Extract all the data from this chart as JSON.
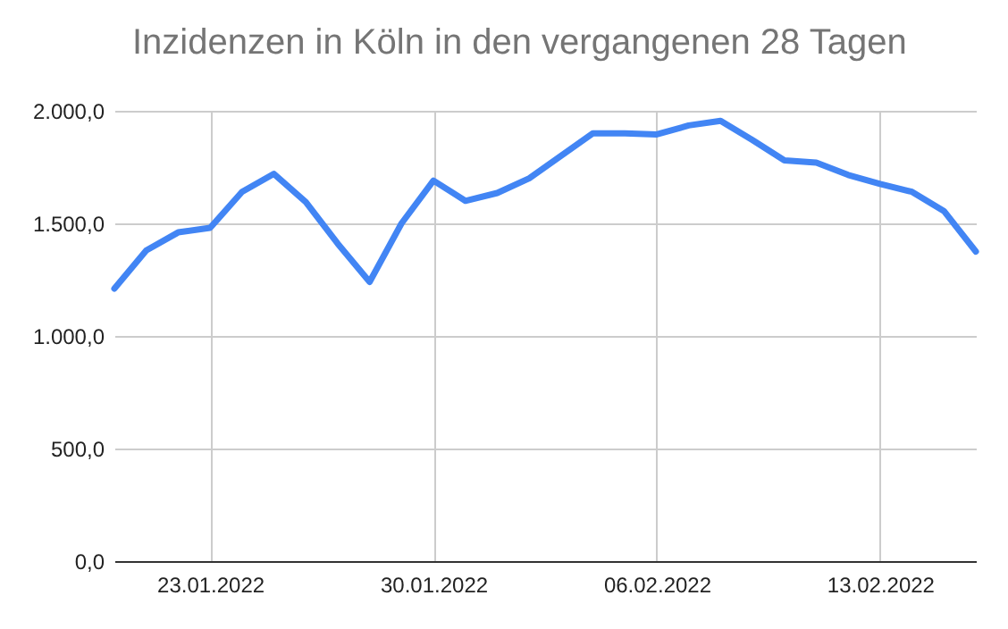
{
  "chart_data": {
    "type": "line",
    "title": "Inzidenzen in Köln in den vergangenen 28 Tagen",
    "x": [
      "2022-01-20",
      "2022-01-21",
      "2022-01-22",
      "2022-01-23",
      "2022-01-24",
      "2022-01-25",
      "2022-01-26",
      "2022-01-27",
      "2022-01-28",
      "2022-01-29",
      "2022-01-30",
      "2022-01-31",
      "2022-02-01",
      "2022-02-02",
      "2022-02-03",
      "2022-02-04",
      "2022-02-05",
      "2022-02-06",
      "2022-02-07",
      "2022-02-08",
      "2022-02-09",
      "2022-02-10",
      "2022-02-11",
      "2022-02-12",
      "2022-02-13",
      "2022-02-14",
      "2022-02-15",
      "2022-02-16"
    ],
    "series": [
      {
        "color": "#4285f4",
        "values": [
          1210,
          1380,
          1460,
          1480,
          1640,
          1720,
          1595,
          1410,
          1240,
          1500,
          1690,
          1600,
          1635,
          1700,
          1800,
          1900,
          1900,
          1895,
          1935,
          1955,
          1870,
          1780,
          1770,
          1715,
          1675,
          1640,
          1555,
          1375
        ]
      }
    ],
    "xlim": [
      "2022-01-20",
      "2022-02-16"
    ],
    "xticks": [
      {
        "value": "2022-01-23",
        "label": "23.01.2022"
      },
      {
        "value": "2022-01-30",
        "label": "30.01.2022"
      },
      {
        "value": "2022-02-06",
        "label": "06.02.2022"
      },
      {
        "value": "2022-02-13",
        "label": "13.02.2022"
      }
    ],
    "ylim": [
      0,
      2000
    ],
    "yticks": [
      {
        "value": 0,
        "label": "0,0"
      },
      {
        "value": 500,
        "label": "500,0"
      },
      {
        "value": 1000,
        "label": "1.000,0"
      },
      {
        "value": 1500,
        "label": "1.500,0"
      },
      {
        "value": 2000,
        "label": "2.000,0"
      }
    ],
    "grid": true,
    "marker": "none",
    "line_style": "solid",
    "legend": false
  }
}
